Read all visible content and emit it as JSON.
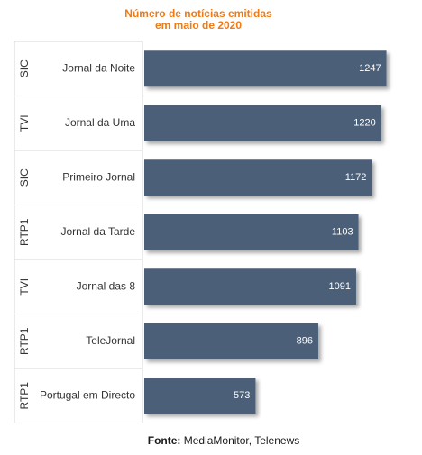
{
  "chart_data": {
    "type": "bar",
    "orientation": "horizontal",
    "title_lines": [
      "Número de notícias emitidas",
      "em maio de 2020"
    ],
    "channels": [
      "SIC",
      "TVI",
      "SIC",
      "RTP1",
      "TVI",
      "RTP1",
      "RTP1"
    ],
    "categories": [
      "Jornal da Noite",
      "Jornal da Uma",
      "Primeiro Jornal",
      "Jornal da Tarde",
      "Jornal das 8",
      "TeleJornal",
      "Portugal em Directo"
    ],
    "values": [
      1247,
      1220,
      1172,
      1103,
      1091,
      896,
      573
    ],
    "xlim": [
      0,
      1300
    ],
    "grid": false,
    "legend": "none",
    "bar_color": "#4b6078",
    "label_color": "#ffffff"
  },
  "source": {
    "label": "Fonte:",
    "text": " MediaMonitor, Telenews"
  }
}
